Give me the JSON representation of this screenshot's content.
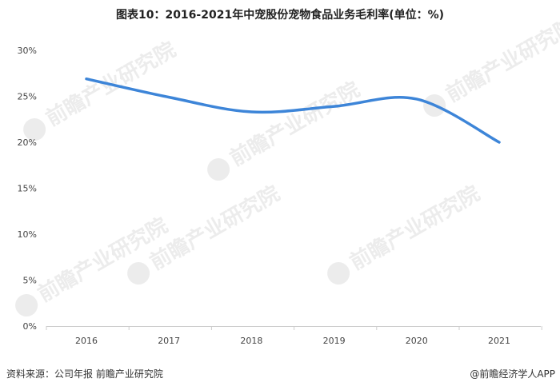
{
  "title": "图表10：2016-2021年中宠股份宠物食品业务毛利率(单位：%)",
  "source": "资料来源：公司年报  前瞻产业研究院",
  "credit": "@前瞻经济学人APP",
  "watermark": "前瞻产业研究院",
  "colors": {
    "line": "#3d85d8",
    "axis": "#cccccc"
  },
  "chart_data": {
    "type": "line",
    "title": "图表10：2016-2021年中宠股份宠物食品业务毛利率(单位：%)",
    "xlabel": "",
    "ylabel": "",
    "categories": [
      "2016",
      "2017",
      "2018",
      "2019",
      "2020",
      "2021"
    ],
    "series": [
      {
        "values": [
          26.9,
          24.9,
          23.3,
          23.9,
          24.7,
          20.0
        ]
      }
    ],
    "ylim": [
      0,
      30
    ],
    "yticks": [
      "0%",
      "5%",
      "10%",
      "15%",
      "20%",
      "25%",
      "30%"
    ],
    "grid": false,
    "legend": "none",
    "smooth": true
  }
}
